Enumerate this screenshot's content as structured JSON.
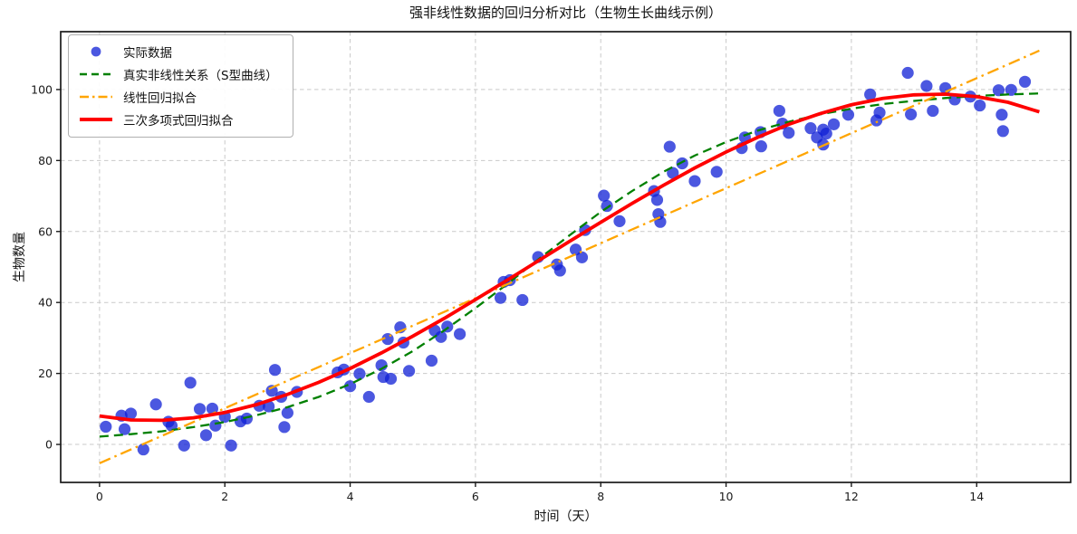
{
  "chart_data": {
    "type": "mixed",
    "title": "强非线性数据的回归分析对比（生物生长曲线示例）",
    "xlabel": "时间（天）",
    "ylabel": "生物数量",
    "xlim": [
      -0.62,
      15.5
    ],
    "ylim": [
      -10.7,
      116.3
    ],
    "xticks": [
      0,
      2,
      4,
      6,
      8,
      10,
      12,
      14
    ],
    "yticks": [
      0,
      20,
      40,
      60,
      80,
      100
    ],
    "grid": true,
    "grid_color": "#c9c9c9",
    "legend_position": "upper-left",
    "series": [
      {
        "name": "实际数据",
        "type": "scatter",
        "color": "#0f1fd6",
        "opacity": 0.75,
        "marker_radius": 6.6,
        "points": [
          [
            0.1,
            5.0
          ],
          [
            0.35,
            8.1
          ],
          [
            0.4,
            4.3
          ],
          [
            0.5,
            8.7
          ],
          [
            0.7,
            -1.4
          ],
          [
            0.9,
            11.3
          ],
          [
            1.1,
            6.4
          ],
          [
            1.15,
            5.3
          ],
          [
            1.35,
            -0.3
          ],
          [
            1.45,
            17.4
          ],
          [
            1.6,
            10.0
          ],
          [
            1.7,
            2.6
          ],
          [
            1.8,
            10.1
          ],
          [
            1.85,
            5.3
          ],
          [
            2.0,
            7.8
          ],
          [
            2.1,
            -0.3
          ],
          [
            2.25,
            6.5
          ],
          [
            2.35,
            7.3
          ],
          [
            2.55,
            10.9
          ],
          [
            2.7,
            10.7
          ],
          [
            2.75,
            15.1
          ],
          [
            2.8,
            21.0
          ],
          [
            2.9,
            13.4
          ],
          [
            2.95,
            4.9
          ],
          [
            3.0,
            8.9
          ],
          [
            3.15,
            14.8
          ],
          [
            3.8,
            20.3
          ],
          [
            3.9,
            21.1
          ],
          [
            4.0,
            16.4
          ],
          [
            4.15,
            19.9
          ],
          [
            4.3,
            13.4
          ],
          [
            4.5,
            22.3
          ],
          [
            4.53,
            19.0
          ],
          [
            4.6,
            29.7
          ],
          [
            4.65,
            18.5
          ],
          [
            4.8,
            33.0
          ],
          [
            4.85,
            28.7
          ],
          [
            4.94,
            20.7
          ],
          [
            5.3,
            23.6
          ],
          [
            5.35,
            32.1
          ],
          [
            5.45,
            30.3
          ],
          [
            5.55,
            33.2
          ],
          [
            5.75,
            31.1
          ],
          [
            6.4,
            41.3
          ],
          [
            6.45,
            45.8
          ],
          [
            6.55,
            46.3
          ],
          [
            6.75,
            40.7
          ],
          [
            7.0,
            52.8
          ],
          [
            7.3,
            50.7
          ],
          [
            7.35,
            49.0
          ],
          [
            7.6,
            54.9
          ],
          [
            7.7,
            52.7
          ],
          [
            7.75,
            60.4
          ],
          [
            8.05,
            70.1
          ],
          [
            8.1,
            67.2
          ],
          [
            8.3,
            62.9
          ],
          [
            8.85,
            71.4
          ],
          [
            8.9,
            68.9
          ],
          [
            8.92,
            64.9
          ],
          [
            8.95,
            62.7
          ],
          [
            9.1,
            83.9
          ],
          [
            9.15,
            76.5
          ],
          [
            9.3,
            79.2
          ],
          [
            9.5,
            74.2
          ],
          [
            9.85,
            76.8
          ],
          [
            10.25,
            83.5
          ],
          [
            10.3,
            86.5
          ],
          [
            10.55,
            88.0
          ],
          [
            10.56,
            84.0
          ],
          [
            10.85,
            94.0
          ],
          [
            10.9,
            90.4
          ],
          [
            11.0,
            87.8
          ],
          [
            11.35,
            89.1
          ],
          [
            11.45,
            86.5
          ],
          [
            11.55,
            88.7
          ],
          [
            11.55,
            84.5
          ],
          [
            11.6,
            87.6
          ],
          [
            11.72,
            90.2
          ],
          [
            11.95,
            92.9
          ],
          [
            12.3,
            98.6
          ],
          [
            12.4,
            91.3
          ],
          [
            12.45,
            93.5
          ],
          [
            12.9,
            104.7
          ],
          [
            12.95,
            93.0
          ],
          [
            13.2,
            101.0
          ],
          [
            13.3,
            94.0
          ],
          [
            13.5,
            100.4
          ],
          [
            13.65,
            97.2
          ],
          [
            13.9,
            98.0
          ],
          [
            14.05,
            95.5
          ],
          [
            14.35,
            99.8
          ],
          [
            14.4,
            92.9
          ],
          [
            14.42,
            88.3
          ],
          [
            14.55,
            99.9
          ],
          [
            14.77,
            102.2
          ]
        ]
      },
      {
        "name": "真实非线性关系（S型曲线）",
        "type": "line",
        "style": "dashed",
        "color": "#008000",
        "width": 2.3,
        "x": [
          0,
          0.5,
          1,
          1.5,
          2,
          2.5,
          3,
          3.5,
          4,
          4.5,
          5,
          5.5,
          6,
          6.5,
          7,
          7.5,
          8,
          8.5,
          9,
          9.5,
          10,
          10.5,
          11,
          11.5,
          12,
          12.5,
          13,
          13.5,
          14,
          14.5,
          15
        ],
        "y": [
          2.2,
          2.9,
          3.7,
          4.9,
          6.3,
          8.2,
          10.5,
          13.4,
          17.0,
          21.3,
          26.3,
          32.1,
          38.4,
          45.1,
          52.1,
          58.9,
          65.5,
          71.4,
          76.8,
          81.4,
          85.2,
          88.4,
          90.9,
          93.0,
          94.6,
          95.9,
          96.8,
          97.6,
          98.2,
          98.6,
          98.9
        ]
      },
      {
        "name": "线性回归拟合",
        "type": "line",
        "style": "dashdot",
        "color": "#ffa500",
        "width": 2.3,
        "x": [
          0,
          15
        ],
        "y": [
          -5.3,
          110.95
        ]
      },
      {
        "name": "三次多项式回归拟合",
        "type": "line",
        "style": "solid",
        "color": "#ff0000",
        "width": 3.8,
        "x": [
          0,
          0.5,
          1,
          1.5,
          2,
          2.5,
          3,
          3.5,
          4,
          4.5,
          5,
          5.5,
          6,
          6.5,
          7,
          7.5,
          8,
          8.5,
          9,
          9.5,
          10,
          10.5,
          11,
          11.5,
          12,
          12.5,
          13,
          13.5,
          14,
          14.5,
          15
        ],
        "y": [
          8.0,
          6.9,
          6.8,
          7.5,
          9.0,
          11.2,
          14.1,
          17.5,
          21.4,
          25.8,
          30.5,
          35.5,
          40.8,
          46.2,
          51.7,
          57.2,
          62.6,
          67.9,
          73.0,
          77.9,
          82.4,
          86.5,
          90.2,
          93.2,
          95.7,
          97.5,
          98.5,
          98.7,
          98.0,
          96.4,
          93.7
        ]
      }
    ]
  }
}
